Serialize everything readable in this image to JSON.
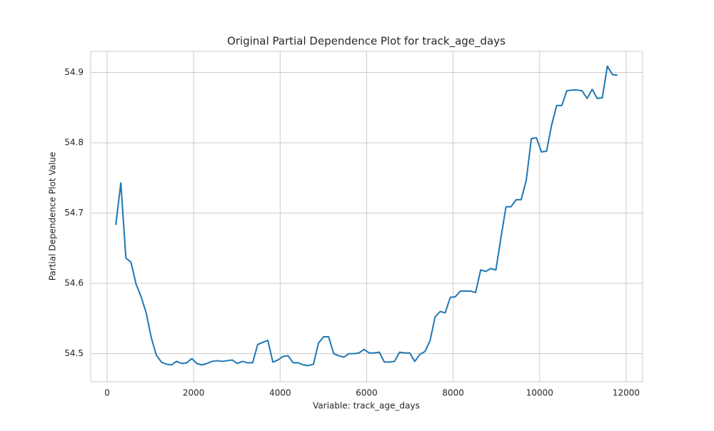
{
  "chart_data": {
    "type": "line",
    "title": "Original Partial Dependence Plot for track_age_days",
    "x_label": "Variable: track_age_days",
    "y_label": "Partial Dependence Plot Value",
    "x": [
      200,
      317,
      434,
      552,
      669,
      786,
      903,
      1020,
      1137,
      1255,
      1372,
      1489,
      1606,
      1723,
      1840,
      1958,
      2075,
      2192,
      2309,
      2426,
      2543,
      2661,
      2778,
      2895,
      3012,
      3129,
      3246,
      3364,
      3481,
      3598,
      3715,
      3832,
      3949,
      4067,
      4184,
      4301,
      4418,
      4535,
      4652,
      4770,
      4887,
      5004,
      5121,
      5238,
      5355,
      5473,
      5590,
      5707,
      5824,
      5941,
      6058,
      6176,
      6293,
      6410,
      6527,
      6644,
      6761,
      6879,
      6996,
      7113,
      7230,
      7347,
      7464,
      7582,
      7699,
      7816,
      7933,
      8050,
      8167,
      8285,
      8402,
      8519,
      8636,
      8753,
      8870,
      8988,
      9105,
      9222,
      9339,
      9456,
      9573,
      9691,
      9808,
      9925,
      10042,
      10159,
      10276,
      10394,
      10511,
      10628,
      10745,
      10862,
      10979,
      11097,
      11214,
      11331,
      11448,
      11565,
      11682,
      11800
    ],
    "series": [
      {
        "color": "#1f77b4",
        "values": [
          54.683,
          54.743,
          54.636,
          54.63,
          54.599,
          54.581,
          54.558,
          54.523,
          54.498,
          54.488,
          54.485,
          54.484,
          54.489,
          54.486,
          54.487,
          54.493,
          54.486,
          54.484,
          54.486,
          54.489,
          54.49,
          54.489,
          54.49,
          54.491,
          54.486,
          54.489,
          54.487,
          54.487,
          54.513,
          54.516,
          54.519,
          54.488,
          54.491,
          54.496,
          54.497,
          54.487,
          54.487,
          54.484,
          54.483,
          54.485,
          54.515,
          54.524,
          54.524,
          54.5,
          54.497,
          54.495,
          54.5,
          54.5,
          54.501,
          54.506,
          54.501,
          54.501,
          54.502,
          54.488,
          54.488,
          54.489,
          54.502,
          54.501,
          54.501,
          54.489,
          54.499,
          54.503,
          54.518,
          54.552,
          54.56,
          54.558,
          54.58,
          54.581,
          54.589,
          54.589,
          54.589,
          54.587,
          54.619,
          54.617,
          54.621,
          54.619,
          54.665,
          54.709,
          54.709,
          54.719,
          54.719,
          54.747,
          54.806,
          54.807,
          54.787,
          54.788,
          54.825,
          54.853,
          54.853,
          54.874,
          54.875,
          54.875,
          54.874,
          54.863,
          54.876,
          54.863,
          54.864,
          54.909,
          54.897,
          54.896
        ]
      }
    ],
    "xlim": [
      -380,
      12380
    ],
    "ylim": [
      54.46,
      54.93
    ],
    "xticks": [
      0,
      2000,
      4000,
      6000,
      8000,
      10000,
      12000
    ],
    "yticks": [
      54.5,
      54.6,
      54.7,
      54.8,
      54.9
    ],
    "grid": true
  }
}
